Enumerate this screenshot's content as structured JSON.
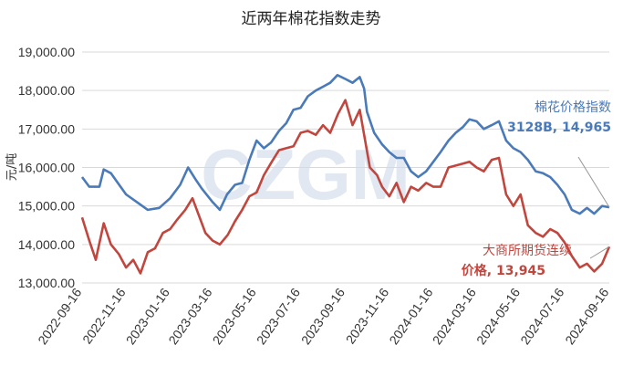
{
  "colors": {
    "series1": "#4a7ab8",
    "series2": "#c0463e",
    "grid": "#d9d9d9"
  },
  "watermark": "CZGM",
  "chart_data": {
    "type": "line",
    "title": "近两年棉花指数走势",
    "xlabel": "",
    "ylabel": "元/吨",
    "ylim": [
      13000,
      19000
    ],
    "yticks": [
      "13,000.00",
      "14,000.00",
      "15,000.00",
      "16,000.00",
      "17,000.00",
      "18,000.00",
      "19,000.00"
    ],
    "xticks": [
      "2022-09-16",
      "2022-11-16",
      "2023-01-16",
      "2023-03-16",
      "2023-05-16",
      "2023-07-16",
      "2023-09-16",
      "2023-11-16",
      "2024-01-16",
      "2024-03-16",
      "2024-05-16",
      "2024-07-16",
      "2024-09-16"
    ],
    "grid": true,
    "series": [
      {
        "name": "棉花价格指数 3128B",
        "points": [
          [
            "2022-09-16",
            15750
          ],
          [
            "2022-09-26",
            15500
          ],
          [
            "2022-10-10",
            15500
          ],
          [
            "2022-10-16",
            15950
          ],
          [
            "2022-10-26",
            15850
          ],
          [
            "2022-11-16",
            15300
          ],
          [
            "2022-12-01",
            15100
          ],
          [
            "2022-12-16",
            14900
          ],
          [
            "2023-01-01",
            14950
          ],
          [
            "2023-01-16",
            15200
          ],
          [
            "2023-01-30",
            15550
          ],
          [
            "2023-02-10",
            16000
          ],
          [
            "2023-02-20",
            15700
          ],
          [
            "2023-03-01",
            15450
          ],
          [
            "2023-03-16",
            15100
          ],
          [
            "2023-03-26",
            14900
          ],
          [
            "2023-04-05",
            15300
          ],
          [
            "2023-04-16",
            15550
          ],
          [
            "2023-04-26",
            15600
          ],
          [
            "2023-05-06",
            16200
          ],
          [
            "2023-05-16",
            16700
          ],
          [
            "2023-05-26",
            16500
          ],
          [
            "2023-06-05",
            16650
          ],
          [
            "2023-06-16",
            16950
          ],
          [
            "2023-06-26",
            17150
          ],
          [
            "2023-07-06",
            17500
          ],
          [
            "2023-07-16",
            17550
          ],
          [
            "2023-07-26",
            17850
          ],
          [
            "2023-08-06",
            18000
          ],
          [
            "2023-08-16",
            18100
          ],
          [
            "2023-08-26",
            18200
          ],
          [
            "2023-09-05",
            18400
          ],
          [
            "2023-09-16",
            18300
          ],
          [
            "2023-09-26",
            18200
          ],
          [
            "2023-10-06",
            18350
          ],
          [
            "2023-10-12",
            18050
          ],
          [
            "2023-10-16",
            17450
          ],
          [
            "2023-10-26",
            16900
          ],
          [
            "2023-11-06",
            16600
          ],
          [
            "2023-11-16",
            16400
          ],
          [
            "2023-11-26",
            16250
          ],
          [
            "2023-12-06",
            16250
          ],
          [
            "2023-12-16",
            15900
          ],
          [
            "2023-12-26",
            15750
          ],
          [
            "2024-01-06",
            15900
          ],
          [
            "2024-01-16",
            16150
          ],
          [
            "2024-01-26",
            16400
          ],
          [
            "2024-02-06",
            16700
          ],
          [
            "2024-02-16",
            16900
          ],
          [
            "2024-02-26",
            17050
          ],
          [
            "2024-03-06",
            17250
          ],
          [
            "2024-03-16",
            17200
          ],
          [
            "2024-03-26",
            17000
          ],
          [
            "2024-04-06",
            17100
          ],
          [
            "2024-04-16",
            17200
          ],
          [
            "2024-04-26",
            16700
          ],
          [
            "2024-05-06",
            16500
          ],
          [
            "2024-05-16",
            16400
          ],
          [
            "2024-05-26",
            16200
          ],
          [
            "2024-06-06",
            15900
          ],
          [
            "2024-06-16",
            15850
          ],
          [
            "2024-06-26",
            15750
          ],
          [
            "2024-07-06",
            15550
          ],
          [
            "2024-07-16",
            15300
          ],
          [
            "2024-07-26",
            14900
          ],
          [
            "2024-08-06",
            14800
          ],
          [
            "2024-08-16",
            14950
          ],
          [
            "2024-08-26",
            14800
          ],
          [
            "2024-09-06",
            15000
          ],
          [
            "2024-09-16",
            14965
          ]
        ],
        "label": "棉花价格指数",
        "label2": "3128B, 14,965"
      },
      {
        "name": "大商所期货连续价格",
        "points": [
          [
            "2022-09-16",
            14700
          ],
          [
            "2022-09-26",
            14100
          ],
          [
            "2022-10-05",
            13600
          ],
          [
            "2022-10-16",
            14550
          ],
          [
            "2022-10-26",
            14000
          ],
          [
            "2022-11-06",
            13750
          ],
          [
            "2022-11-16",
            13400
          ],
          [
            "2022-11-26",
            13600
          ],
          [
            "2022-12-06",
            13250
          ],
          [
            "2022-12-16",
            13800
          ],
          [
            "2022-12-26",
            13900
          ],
          [
            "2023-01-06",
            14300
          ],
          [
            "2023-01-16",
            14400
          ],
          [
            "2023-01-26",
            14650
          ],
          [
            "2023-02-06",
            14900
          ],
          [
            "2023-02-16",
            15200
          ],
          [
            "2023-02-26",
            14700
          ],
          [
            "2023-03-06",
            14300
          ],
          [
            "2023-03-16",
            14100
          ],
          [
            "2023-03-26",
            14000
          ],
          [
            "2023-04-06",
            14250
          ],
          [
            "2023-04-16",
            14600
          ],
          [
            "2023-04-26",
            14900
          ],
          [
            "2023-05-06",
            15250
          ],
          [
            "2023-05-16",
            15350
          ],
          [
            "2023-05-26",
            15800
          ],
          [
            "2023-06-06",
            16150
          ],
          [
            "2023-06-16",
            16450
          ],
          [
            "2023-06-26",
            16500
          ],
          [
            "2023-07-06",
            16550
          ],
          [
            "2023-07-16",
            16900
          ],
          [
            "2023-07-26",
            16950
          ],
          [
            "2023-08-06",
            16850
          ],
          [
            "2023-08-16",
            17100
          ],
          [
            "2023-08-26",
            16900
          ],
          [
            "2023-09-06",
            17400
          ],
          [
            "2023-09-16",
            17750
          ],
          [
            "2023-09-26",
            17100
          ],
          [
            "2023-10-06",
            17500
          ],
          [
            "2023-10-12",
            16850
          ],
          [
            "2023-10-20",
            16000
          ],
          [
            "2023-10-30",
            15800
          ],
          [
            "2023-11-06",
            15500
          ],
          [
            "2023-11-16",
            15250
          ],
          [
            "2023-11-26",
            15600
          ],
          [
            "2023-12-06",
            15100
          ],
          [
            "2023-12-16",
            15500
          ],
          [
            "2023-12-26",
            15400
          ],
          [
            "2024-01-06",
            15600
          ],
          [
            "2024-01-16",
            15500
          ],
          [
            "2024-01-26",
            15500
          ],
          [
            "2024-02-06",
            16000
          ],
          [
            "2024-02-16",
            16050
          ],
          [
            "2024-02-26",
            16100
          ],
          [
            "2024-03-06",
            16150
          ],
          [
            "2024-03-16",
            16000
          ],
          [
            "2024-03-26",
            15900
          ],
          [
            "2024-04-06",
            16200
          ],
          [
            "2024-04-16",
            16250
          ],
          [
            "2024-04-26",
            15300
          ],
          [
            "2024-05-06",
            15000
          ],
          [
            "2024-05-16",
            15300
          ],
          [
            "2024-05-26",
            14500
          ],
          [
            "2024-06-06",
            14300
          ],
          [
            "2024-06-16",
            14200
          ],
          [
            "2024-06-26",
            14400
          ],
          [
            "2024-07-06",
            14300
          ],
          [
            "2024-07-16",
            14050
          ],
          [
            "2024-07-26",
            13700
          ],
          [
            "2024-08-06",
            13400
          ],
          [
            "2024-08-16",
            13500
          ],
          [
            "2024-08-26",
            13300
          ],
          [
            "2024-09-06",
            13500
          ],
          [
            "2024-09-16",
            13945
          ]
        ],
        "label": "大商所期货连续",
        "label2": "价格, 13,945"
      }
    ]
  }
}
